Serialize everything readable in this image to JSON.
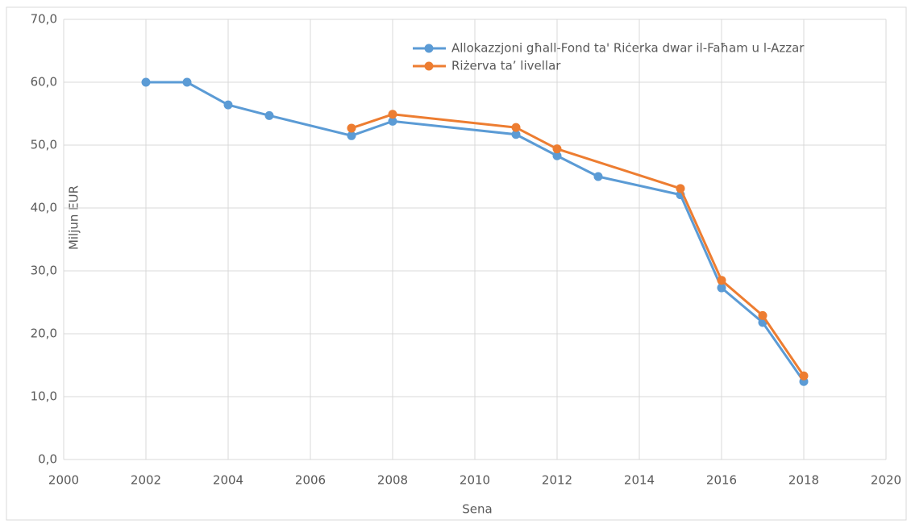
{
  "chart_data": {
    "type": "line",
    "x_label": "Sena",
    "y_label": "Miljun EUR",
    "series": [
      {
        "name": "Allokazzjoni għall-Fond ta' Riċerka dwar il-Faħam u l-Azzar",
        "color": "#5b9bd5",
        "x": [
          2002,
          2003,
          2004,
          2005,
          2007,
          2008,
          2011,
          2012,
          2013,
          2015,
          2016,
          2017,
          2018
        ],
        "values": [
          60.0,
          60.0,
          56.4,
          54.7,
          51.5,
          53.8,
          51.7,
          48.3,
          45.0,
          42.1,
          27.3,
          21.8,
          12.4
        ]
      },
      {
        "name": "Riżerva ta’ livellar",
        "color": "#ed7d31",
        "x": [
          2007,
          2008,
          2011,
          2012,
          2015,
          2016,
          2017,
          2018
        ],
        "values": [
          52.7,
          54.9,
          52.8,
          49.4,
          43.1,
          28.5,
          22.9,
          13.3
        ]
      }
    ],
    "xlim": [
      2000,
      2020
    ],
    "xticks": [
      2000,
      2002,
      2004,
      2006,
      2008,
      2010,
      2012,
      2014,
      2016,
      2018,
      2020
    ],
    "ylim": [
      0,
      70
    ],
    "yticks": [
      {
        "value": 0,
        "label": "0,0"
      },
      {
        "value": 10,
        "label": "10,0"
      },
      {
        "value": 20,
        "label": "20,0"
      },
      {
        "value": 30,
        "label": "30,0"
      },
      {
        "value": 40,
        "label": "40,0"
      },
      {
        "value": 50,
        "label": "50,0"
      },
      {
        "value": 60,
        "label": "60,0"
      },
      {
        "value": 70,
        "label": "70,0"
      }
    ],
    "grid": true,
    "legend": "top-right"
  }
}
